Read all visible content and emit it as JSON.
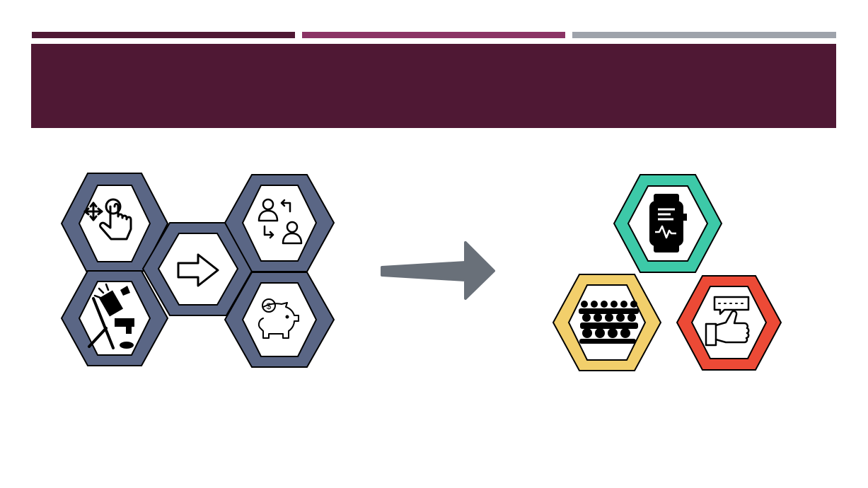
{
  "slide": {
    "title": "",
    "colors": {
      "bar_dark": "#4F1834",
      "bar_mid": "#8B3465",
      "bar_light": "#9EA3AB",
      "title_band": "#4F1834",
      "hex_border_blue": "#5A6685",
      "hex_teal": "#3DC9A8",
      "hex_yellow": "#F2CF6B",
      "hex_red": "#EC4A36",
      "arrow": "#697079"
    },
    "left_cluster": {
      "hexes": [
        {
          "icon": "touch-gesture-icon"
        },
        {
          "icon": "right-arrow-icon"
        },
        {
          "icon": "user-switch-icon"
        },
        {
          "icon": "broken-equipment-icon"
        },
        {
          "icon": "piggy-bank-icon"
        }
      ]
    },
    "center_arrow": {
      "icon": "process-arrow-icon"
    },
    "right_cluster": {
      "hexes": [
        {
          "icon": "smartwatch-icon"
        },
        {
          "icon": "audience-crowd-icon"
        },
        {
          "icon": "thumbs-up-feedback-icon"
        }
      ]
    }
  }
}
